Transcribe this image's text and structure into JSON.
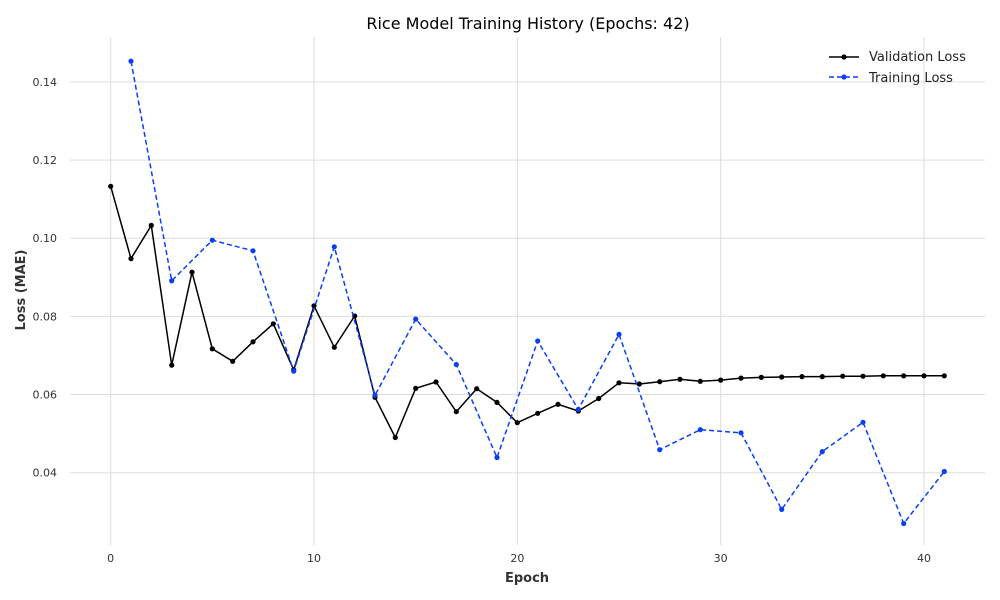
{
  "chart_data": {
    "type": "line",
    "title": "Rice Model Training History (Epochs: 42)",
    "xlabel": "Epoch",
    "ylabel": "Loss (MAE)",
    "xlim": [
      -2,
      43
    ],
    "ylim": [
      0.0215,
      0.1515
    ],
    "xticks": [
      0,
      10,
      20,
      30,
      40
    ],
    "xtick_labels": [
      "0",
      "10",
      "20",
      "30",
      "40"
    ],
    "yticks": [
      0.04,
      0.06,
      0.08,
      0.1,
      0.12,
      0.14
    ],
    "ytick_labels": [
      "0.04",
      "0.06",
      "0.08",
      "0.10",
      "0.12",
      "0.14"
    ],
    "grid": true,
    "legend_position": "top-right",
    "series": [
      {
        "name": "Validation Loss",
        "color": "#000000",
        "style": "solid",
        "marker": "circle",
        "x": [
          0,
          1,
          2,
          3,
          4,
          5,
          6,
          7,
          8,
          9,
          10,
          11,
          12,
          13,
          14,
          15,
          16,
          17,
          18,
          19,
          20,
          21,
          22,
          23,
          24,
          25,
          26,
          27,
          28,
          29,
          30,
          31,
          32,
          33,
          34,
          35,
          36,
          37,
          38,
          39,
          40,
          41
        ],
        "y": [
          0.1133,
          0.0948,
          0.1033,
          0.0675,
          0.0913,
          0.0717,
          0.0685,
          0.0735,
          0.0781,
          0.0663,
          0.0827,
          0.0721,
          0.0801,
          0.0593,
          0.049,
          0.0616,
          0.0632,
          0.0556,
          0.0615,
          0.058,
          0.0528,
          0.0552,
          0.0575,
          0.0558,
          0.059,
          0.063,
          0.0627,
          0.0633,
          0.0639,
          0.0634,
          0.0637,
          0.0642,
          0.0644,
          0.0645,
          0.0646,
          0.0646,
          0.0647,
          0.0647,
          0.0648,
          0.0648,
          0.0648,
          0.0648
        ]
      },
      {
        "name": "Training Loss",
        "color": "#0a3ff2",
        "style": "dashed",
        "marker": "circle",
        "x": [
          1,
          3,
          5,
          7,
          9,
          11,
          13,
          15,
          17,
          19,
          21,
          23,
          25,
          27,
          29,
          31,
          33,
          35,
          37,
          39,
          41
        ],
        "y": [
          0.1453,
          0.0891,
          0.0995,
          0.0968,
          0.066,
          0.0978,
          0.0598,
          0.0793,
          0.0677,
          0.0439,
          0.0737,
          0.0562,
          0.0754,
          0.0459,
          0.051,
          0.0502,
          0.0306,
          0.0454,
          0.0529,
          0.027,
          0.0403
        ]
      }
    ]
  }
}
